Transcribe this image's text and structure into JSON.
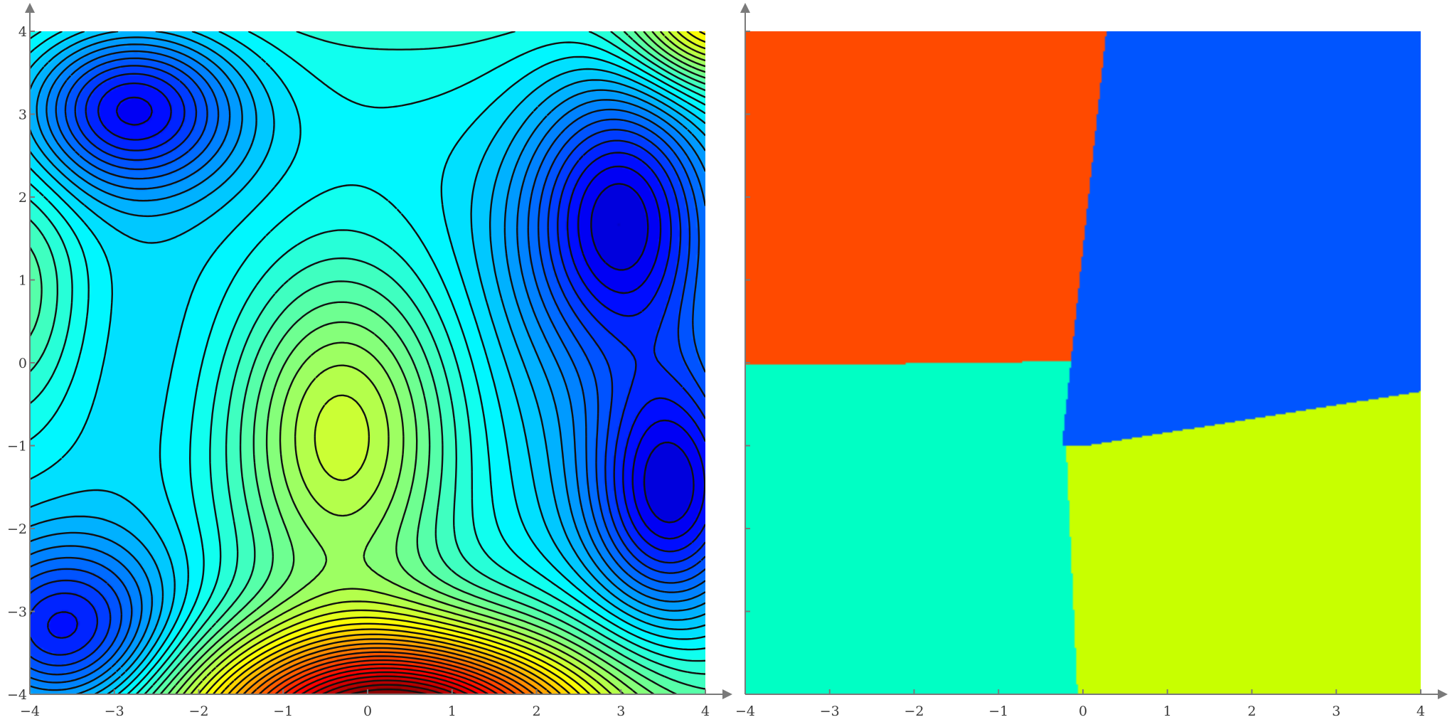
{
  "chart_data": [
    {
      "type": "heatmap",
      "subtype": "filled-contour",
      "title": "",
      "xlabel": "",
      "ylabel": "",
      "xlim": [
        -4,
        4
      ],
      "ylim": [
        -4,
        4
      ],
      "x_ticks": [
        -4,
        -3,
        -2,
        -1,
        0,
        1,
        2,
        3,
        4
      ],
      "y_ticks": [
        -4,
        -3,
        -2,
        -1,
        0,
        1,
        2,
        3,
        4
      ],
      "x_tick_labels": [
        "−4",
        "−3",
        "−2",
        "−1",
        "0",
        "1",
        "2",
        "3",
        "4"
      ],
      "y_tick_labels": [
        "−4",
        "−3",
        "−2",
        "−1",
        "0",
        "1",
        "2",
        "3",
        "4"
      ],
      "colormap": "jet",
      "contour_style": "dashed-black",
      "grid": false,
      "minima": [
        {
          "x": -2.8,
          "y": 3.1
        },
        {
          "x": 3.0,
          "y": 1.8
        },
        {
          "x": 3.6,
          "y": -1.6
        },
        {
          "x": -3.6,
          "y": -3.2
        }
      ],
      "local_peak": {
        "x": -0.3,
        "y": -0.8
      },
      "global_max": {
        "x": 0.3,
        "y": -4.0
      }
    },
    {
      "type": "heatmap",
      "subtype": "basins-of-attraction",
      "title": "",
      "xlabel": "",
      "ylabel": "",
      "xlim": [
        -4,
        4
      ],
      "ylim": [
        -4,
        4
      ],
      "x_ticks": [
        -4,
        -3,
        -2,
        -1,
        0,
        1,
        2,
        3,
        4
      ],
      "x_tick_labels": [
        "−4",
        "−3",
        "−2",
        "−1",
        "0",
        "1",
        "2",
        "3",
        "4"
      ],
      "grid": false,
      "regions": [
        {
          "color": "#ff4a00",
          "quadrant": "top-left"
        },
        {
          "color": "#0055ff",
          "quadrant": "top-right"
        },
        {
          "color": "#00ffc4",
          "quadrant": "bottom-left"
        },
        {
          "color": "#c8ff00",
          "quadrant": "bottom-right"
        }
      ]
    }
  ]
}
